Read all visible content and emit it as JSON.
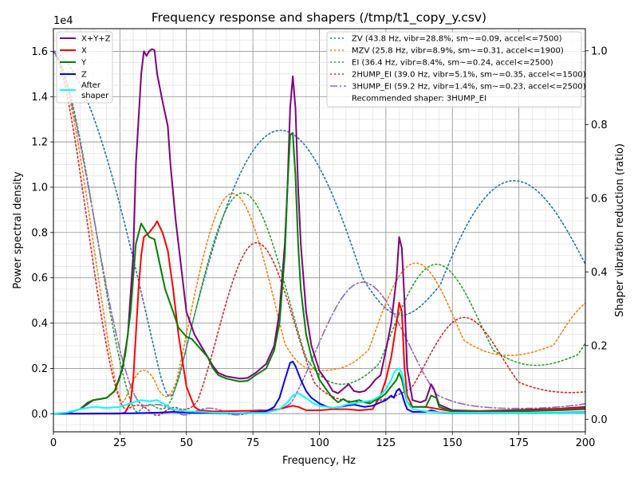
{
  "chart_data": {
    "type": "line",
    "title": "Frequency response and shapers (/tmp/t1_copy_y.csv)",
    "xlabel": "Frequency, Hz",
    "ylabel": "Power spectral density",
    "y2label": "Shaper vibration reduction (ratio)",
    "y_offset_text": "1e4",
    "xlim": [
      0,
      200
    ],
    "ylim": [
      -800,
      17000
    ],
    "y2lim": [
      -0.034,
      1.06
    ],
    "grid": true,
    "xticks": [
      "0",
      "25",
      "50",
      "75",
      "100",
      "125",
      "150",
      "175",
      "200"
    ],
    "yticks": [
      "0.0",
      "0.2",
      "0.4",
      "0.6",
      "0.8",
      "1.0",
      "1.2",
      "1.4",
      "1.6"
    ],
    "y2ticks": [
      "0.0",
      "0.2",
      "0.4",
      "0.6",
      "0.8",
      "1.0"
    ],
    "legend_left_placement": "upper-left",
    "legend_right_placement": "upper-right",
    "psd_series": [
      {
        "name": "X+Y+Z",
        "color": "#800080",
        "style": "solid",
        "points": [
          [
            0,
            0
          ],
          [
            5,
            30
          ],
          [
            10,
            200
          ],
          [
            15,
            600
          ],
          [
            20,
            700
          ],
          [
            23,
            1000
          ],
          [
            26,
            2000
          ],
          [
            28,
            3500
          ],
          [
            30,
            7000
          ],
          [
            31,
            11000
          ],
          [
            33,
            15000
          ],
          [
            34,
            16000
          ],
          [
            35,
            15800
          ],
          [
            36,
            16000
          ],
          [
            37,
            16100
          ],
          [
            38,
            16050
          ],
          [
            39,
            15000
          ],
          [
            41,
            13800
          ],
          [
            43,
            12700
          ],
          [
            44,
            11000
          ],
          [
            46,
            8500
          ],
          [
            48,
            6500
          ],
          [
            50,
            4500
          ],
          [
            53,
            3500
          ],
          [
            55,
            3100
          ],
          [
            58,
            2500
          ],
          [
            60,
            2100
          ],
          [
            62,
            1800
          ],
          [
            65,
            1650
          ],
          [
            70,
            1550
          ],
          [
            73,
            1580
          ],
          [
            76,
            1800
          ],
          [
            80,
            2200
          ],
          [
            83,
            3000
          ],
          [
            85,
            4500
          ],
          [
            87,
            7500
          ],
          [
            88,
            10000
          ],
          [
            89,
            13500
          ],
          [
            90,
            14900
          ],
          [
            91,
            13500
          ],
          [
            92,
            10000
          ],
          [
            93,
            7500
          ],
          [
            95,
            4500
          ],
          [
            97,
            3000
          ],
          [
            100,
            1900
          ],
          [
            103,
            1400
          ],
          [
            105,
            1000
          ],
          [
            107,
            900
          ],
          [
            109,
            1100
          ],
          [
            111,
            1300
          ],
          [
            113,
            1000
          ],
          [
            115,
            950
          ],
          [
            117,
            1000
          ],
          [
            119,
            1200
          ],
          [
            121,
            1500
          ],
          [
            123,
            1700
          ],
          [
            125,
            2800
          ],
          [
            127,
            4000
          ],
          [
            129,
            6000
          ],
          [
            130,
            7800
          ],
          [
            131,
            7300
          ],
          [
            132,
            5000
          ],
          [
            133,
            2000
          ],
          [
            135,
            600
          ],
          [
            138,
            500
          ],
          [
            140,
            600
          ],
          [
            142,
            1300
          ],
          [
            143,
            1100
          ],
          [
            145,
            400
          ],
          [
            150,
            150
          ],
          [
            160,
            120
          ],
          [
            170,
            150
          ],
          [
            180,
            180
          ],
          [
            190,
            220
          ],
          [
            200,
            300
          ]
        ]
      },
      {
        "name": "X",
        "color": "#ff0000",
        "style": "solid",
        "points": [
          [
            0,
            0
          ],
          [
            5,
            0
          ],
          [
            10,
            0
          ],
          [
            15,
            0
          ],
          [
            20,
            0
          ],
          [
            25,
            0
          ],
          [
            27,
            50
          ],
          [
            29,
            500
          ],
          [
            30,
            1500
          ],
          [
            31,
            3500
          ],
          [
            32,
            5500
          ],
          [
            33,
            7000
          ],
          [
            34,
            7800
          ],
          [
            36,
            8000
          ],
          [
            38,
            8300
          ],
          [
            39,
            8500
          ],
          [
            41,
            8000
          ],
          [
            43,
            7200
          ],
          [
            45,
            5500
          ],
          [
            47,
            3500
          ],
          [
            50,
            1200
          ],
          [
            53,
            300
          ],
          [
            55,
            150
          ],
          [
            60,
            100
          ],
          [
            70,
            120
          ],
          [
            80,
            150
          ],
          [
            85,
            200
          ],
          [
            88,
            300
          ],
          [
            90,
            350
          ],
          [
            92,
            300
          ],
          [
            95,
            150
          ],
          [
            100,
            150
          ],
          [
            105,
            200
          ],
          [
            110,
            200
          ],
          [
            115,
            150
          ],
          [
            120,
            200
          ],
          [
            123,
            800
          ],
          [
            125,
            1500
          ],
          [
            127,
            2500
          ],
          [
            129,
            4000
          ],
          [
            130,
            4900
          ],
          [
            131,
            4500
          ],
          [
            132,
            2000
          ],
          [
            133,
            800
          ],
          [
            135,
            300
          ],
          [
            140,
            300
          ],
          [
            145,
            200
          ],
          [
            150,
            100
          ],
          [
            160,
            100
          ],
          [
            170,
            120
          ],
          [
            180,
            150
          ],
          [
            190,
            200
          ],
          [
            200,
            250
          ]
        ]
      },
      {
        "name": "Y",
        "color": "#008000",
        "style": "solid",
        "points": [
          [
            0,
            0
          ],
          [
            5,
            30
          ],
          [
            10,
            200
          ],
          [
            13,
            500
          ],
          [
            15,
            600
          ],
          [
            18,
            650
          ],
          [
            20,
            700
          ],
          [
            23,
            1000
          ],
          [
            25,
            1600
          ],
          [
            27,
            2600
          ],
          [
            29,
            4500
          ],
          [
            31,
            7500
          ],
          [
            33,
            8400
          ],
          [
            35,
            8000
          ],
          [
            36,
            7800
          ],
          [
            38,
            7700
          ],
          [
            40,
            6600
          ],
          [
            42,
            5500
          ],
          [
            45,
            4500
          ],
          [
            47,
            3800
          ],
          [
            50,
            3400
          ],
          [
            52,
            3300
          ],
          [
            55,
            2900
          ],
          [
            58,
            2500
          ],
          [
            60,
            2000
          ],
          [
            62,
            1700
          ],
          [
            65,
            1550
          ],
          [
            70,
            1420
          ],
          [
            73,
            1450
          ],
          [
            76,
            1700
          ],
          [
            80,
            2000
          ],
          [
            83,
            2800
          ],
          [
            85,
            4000
          ],
          [
            87,
            7000
          ],
          [
            88,
            10000
          ],
          [
            89,
            12300
          ],
          [
            90,
            12400
          ],
          [
            91,
            10500
          ],
          [
            92,
            7500
          ],
          [
            93,
            5500
          ],
          [
            95,
            3500
          ],
          [
            97,
            2500
          ],
          [
            100,
            1500
          ],
          [
            103,
            1000
          ],
          [
            105,
            700
          ],
          [
            107,
            500
          ],
          [
            109,
            650
          ],
          [
            111,
            500
          ],
          [
            113,
            550
          ],
          [
            115,
            600
          ],
          [
            117,
            500
          ],
          [
            119,
            450
          ],
          [
            121,
            600
          ],
          [
            123,
            700
          ],
          [
            125,
            900
          ],
          [
            127,
            1200
          ],
          [
            129,
            1500
          ],
          [
            130,
            1800
          ],
          [
            131,
            1500
          ],
          [
            132,
            1000
          ],
          [
            133,
            500
          ],
          [
            135,
            300
          ],
          [
            140,
            300
          ],
          [
            142,
            800
          ],
          [
            144,
            700
          ],
          [
            145,
            300
          ],
          [
            150,
            100
          ],
          [
            160,
            80
          ],
          [
            170,
            100
          ],
          [
            180,
            120
          ],
          [
            190,
            150
          ],
          [
            200,
            200
          ]
        ]
      },
      {
        "name": "Z",
        "color": "#0000ff",
        "style": "solid",
        "points": [
          [
            0,
            0
          ],
          [
            10,
            0
          ],
          [
            20,
            10
          ],
          [
            30,
            20
          ],
          [
            40,
            50
          ],
          [
            45,
            80
          ],
          [
            50,
            50
          ],
          [
            60,
            30
          ],
          [
            70,
            20
          ],
          [
            80,
            100
          ],
          [
            83,
            300
          ],
          [
            85,
            700
          ],
          [
            87,
            1500
          ],
          [
            89,
            2250
          ],
          [
            90,
            2300
          ],
          [
            91,
            2100
          ],
          [
            93,
            1500
          ],
          [
            95,
            1000
          ],
          [
            97,
            700
          ],
          [
            100,
            450
          ],
          [
            103,
            300
          ],
          [
            105,
            250
          ],
          [
            108,
            300
          ],
          [
            110,
            350
          ],
          [
            113,
            400
          ],
          [
            115,
            350
          ],
          [
            117,
            300
          ],
          [
            120,
            350
          ],
          [
            123,
            500
          ],
          [
            125,
            600
          ],
          [
            127,
            800
          ],
          [
            128,
            700
          ],
          [
            129,
            1000
          ],
          [
            130,
            1100
          ],
          [
            131,
            900
          ],
          [
            132,
            500
          ],
          [
            133,
            200
          ],
          [
            135,
            80
          ],
          [
            140,
            80
          ],
          [
            142,
            150
          ],
          [
            145,
            60
          ],
          [
            150,
            30
          ],
          [
            160,
            30
          ],
          [
            170,
            40
          ],
          [
            180,
            40
          ],
          [
            190,
            50
          ],
          [
            200,
            60
          ]
        ]
      },
      {
        "name": "After\nshaper",
        "color": "#00ffff",
        "style": "solid",
        "points": [
          [
            0,
            0
          ],
          [
            5,
            50
          ],
          [
            10,
            200
          ],
          [
            15,
            300
          ],
          [
            20,
            250
          ],
          [
            25,
            300
          ],
          [
            30,
            500
          ],
          [
            33,
            600
          ],
          [
            36,
            550
          ],
          [
            39,
            600
          ],
          [
            42,
            400
          ],
          [
            45,
            200
          ],
          [
            50,
            100
          ],
          [
            55,
            80
          ],
          [
            60,
            50
          ],
          [
            70,
            30
          ],
          [
            80,
            40
          ],
          [
            85,
            200
          ],
          [
            88,
            500
          ],
          [
            90,
            800
          ],
          [
            92,
            900
          ],
          [
            95,
            700
          ],
          [
            97,
            500
          ],
          [
            100,
            350
          ],
          [
            103,
            300
          ],
          [
            105,
            250
          ],
          [
            108,
            300
          ],
          [
            110,
            400
          ],
          [
            113,
            450
          ],
          [
            115,
            500
          ],
          [
            118,
            550
          ],
          [
            120,
            600
          ],
          [
            123,
            800
          ],
          [
            125,
            1100
          ],
          [
            127,
            1500
          ],
          [
            128,
            1800
          ],
          [
            129,
            1950
          ],
          [
            130,
            2000
          ],
          [
            131,
            1800
          ],
          [
            132,
            1200
          ],
          [
            133,
            500
          ],
          [
            135,
            200
          ],
          [
            140,
            100
          ],
          [
            145,
            60
          ],
          [
            150,
            40
          ],
          [
            160,
            40
          ],
          [
            170,
            40
          ],
          [
            180,
            40
          ],
          [
            190,
            40
          ],
          [
            200,
            40
          ]
        ]
      }
    ],
    "shaper_series": [
      {
        "name": "ZV (43.8 Hz, vibr=28.8%, sm~=0.09, accel<=7500)",
        "color": "#1f77b4",
        "style": "dotted",
        "func": "zv",
        "freq": 43.8
      },
      {
        "name": "MZV (25.8 Hz, vibr=8.9%, sm~=0.31, accel<=1900)",
        "color": "#ff7f0e",
        "style": "dotted",
        "func": "mzv",
        "freq": 25.8
      },
      {
        "name": "EI (36.4 Hz, vibr=8.4%, sm~=0.24, accel<=2500)",
        "color": "#2ca02c",
        "style": "dotted",
        "func": "ei",
        "freq": 36.4
      },
      {
        "name": "2HUMP_EI (39.0 Hz, vibr=5.1%, sm~=0.35, accel<=1500)",
        "color": "#d62728",
        "style": "dotted",
        "func": "2hump_ei",
        "freq": 39.0
      },
      {
        "name": "3HUMP_EI (59.2 Hz, vibr=1.4%, sm~=0.23, accel<=2500)",
        "color": "#9467bd",
        "style": "dashdot",
        "func": "3hump_ei",
        "freq": 59.2
      }
    ],
    "recommendation": "Recommended shaper: 3HUMP_EI"
  }
}
